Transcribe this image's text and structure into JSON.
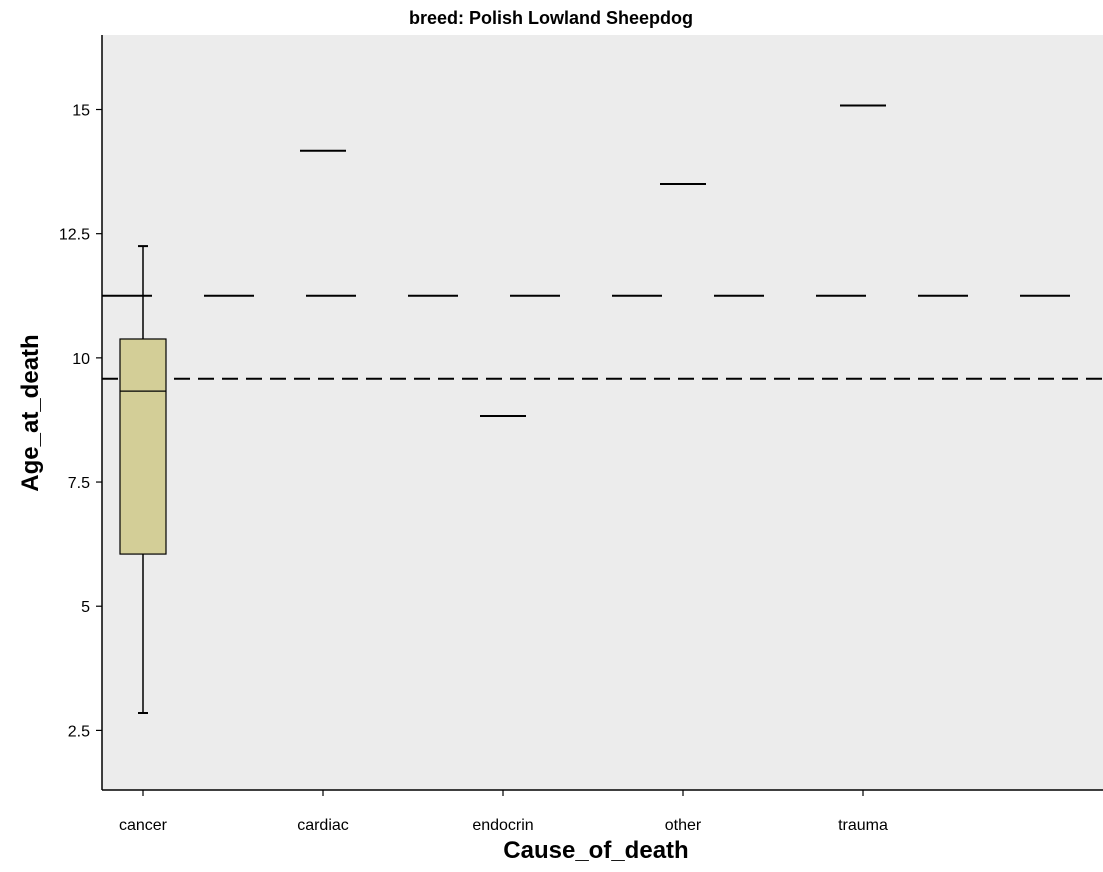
{
  "chart_data": {
    "type": "boxplot",
    "title": "breed: Polish Lowland Sheepdog",
    "xlabel": "Cause_of_death",
    "ylabel": "Age_at_death",
    "categories": [
      "cancer",
      "cardiac",
      "endocrin",
      "other",
      "trauma"
    ],
    "ylim": [
      1.3,
      16.5
    ],
    "yticks": [
      2.5,
      5,
      7.5,
      10,
      12.5,
      15
    ],
    "ytick_labels": [
      "2.5",
      "5",
      "7.5",
      "10",
      "12.5",
      "15"
    ],
    "boxes": [
      {
        "category": "cancer",
        "min": 2.85,
        "q1": 6.05,
        "median": 9.33,
        "q3": 10.38,
        "max": 12.25
      },
      {
        "category": "cardiac",
        "min": 14.17,
        "q1": 14.17,
        "median": 14.17,
        "q3": 14.17,
        "max": 14.17
      },
      {
        "category": "endocrin",
        "min": 8.83,
        "q1": 8.83,
        "median": 8.83,
        "q3": 8.83,
        "max": 8.83
      },
      {
        "category": "other",
        "min": 13.5,
        "q1": 13.5,
        "median": 13.5,
        "q3": 13.5,
        "max": 13.5
      },
      {
        "category": "trauma",
        "min": 15.08,
        "q1": 15.08,
        "median": 15.08,
        "q3": 15.08,
        "max": 15.08
      }
    ],
    "reference_lines": [
      {
        "y": 11.25,
        "style": "long-dash"
      },
      {
        "y": 9.58,
        "style": "dash"
      }
    ],
    "grid": false,
    "colors": {
      "plot_background": "#ececec",
      "box_fill": "#d3ce97",
      "stroke": "#000000"
    }
  }
}
